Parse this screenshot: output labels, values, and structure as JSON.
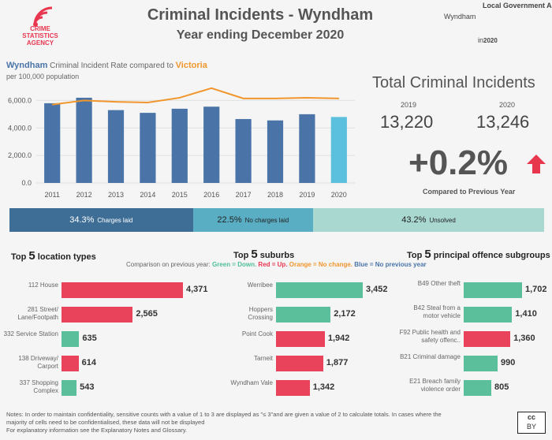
{
  "header": {
    "title": "Criminal Incidents - Wyndham",
    "subtitle": "Year ending December 2020",
    "logo_text": [
      "CRIME",
      "STATISTICS",
      "AGENCY"
    ]
  },
  "filters": {
    "lga_label": "Local Government Area",
    "lga_value": "Wyndham",
    "year_prefix": "in",
    "year_value": "2020"
  },
  "rate_chart": {
    "title_area": "Wyndham",
    "title_mid": " Criminal Incident Rate compared to ",
    "title_vic": "Victoria",
    "subtitle": "per 100,000 population"
  },
  "chart_data": {
    "type": "bar",
    "title": "Wyndham Criminal Incident Rate compared to Victoria",
    "ylabel": "per 100,000 population",
    "categories": [
      "2011",
      "2012",
      "2013",
      "2014",
      "2015",
      "2016",
      "2017",
      "2018",
      "2019",
      "2020"
    ],
    "series": [
      {
        "name": "Wyndham",
        "type": "bar",
        "values": [
          5800,
          6200,
          5300,
          5100,
          5400,
          5550,
          4650,
          4550,
          5000,
          4800
        ]
      },
      {
        "name": "Victoria",
        "type": "line",
        "values": [
          5700,
          6000,
          5900,
          5850,
          6200,
          6900,
          6150,
          6150,
          6200,
          6150
        ]
      }
    ],
    "ylim": [
      0,
      7000
    ],
    "yticks": [
      "0.0",
      "2,000.0",
      "4,000.0",
      "6,000.0"
    ],
    "ytick_values": [
      0,
      2000,
      4000,
      6000
    ]
  },
  "totals": {
    "title": "Total Criminal Incidents",
    "year_prev": "2019",
    "year_curr": "2020",
    "value_prev": "13,220",
    "value_curr": "13,246",
    "change": "+0.2%",
    "change_label": "Compared to Previous Year"
  },
  "outcomes": [
    {
      "pct": "34.3%",
      "label": "Charges laid",
      "share": 34.3,
      "color": "#3e6e96"
    },
    {
      "pct": "22.5%",
      "label": "No charges laid",
      "share": 22.5,
      "color": "#5aaec3"
    },
    {
      "pct": "43.2%",
      "label": "Unsolved",
      "share": 43.2,
      "color": "#a9d8d1"
    }
  ],
  "legend": {
    "prefix": "Comparison on previous year: ",
    "green": "Green = Down.",
    "red": "Red = Up.",
    "orange": "Orange = No change.",
    "blue": "Blue = No previous year"
  },
  "locations": {
    "title_pre": "Top ",
    "title_n": "5",
    "title_post": " location types",
    "items": [
      {
        "label": "112 House",
        "value": 4371,
        "display": "4,371",
        "color": "#e8435b"
      },
      {
        "label": "281 Street/ Lane/Footpath",
        "value": 2565,
        "display": "2,565",
        "color": "#e8435b"
      },
      {
        "label": "332 Service Station",
        "value": 635,
        "display": "635",
        "color": "#5cbf9c"
      },
      {
        "label": "138 Driveway/ Carport",
        "value": 614,
        "display": "614",
        "color": "#e8435b"
      },
      {
        "label": "337 Shopping Complex",
        "value": 543,
        "display": "543",
        "color": "#5cbf9c"
      }
    ]
  },
  "suburbs": {
    "title_pre": "Top ",
    "title_n": "5",
    "title_post": " suburbs",
    "items": [
      {
        "label": "Werribee",
        "value": 3452,
        "display": "3,452",
        "color": "#5cbf9c"
      },
      {
        "label": "Hoppers Crossing",
        "value": 2172,
        "display": "2,172",
        "color": "#5cbf9c"
      },
      {
        "label": "Point Cook",
        "value": 1942,
        "display": "1,942",
        "color": "#e8435b"
      },
      {
        "label": "Tarneit",
        "value": 1877,
        "display": "1,877",
        "color": "#e8435b"
      },
      {
        "label": "Wyndham Vale",
        "value": 1342,
        "display": "1,342",
        "color": "#e8435b"
      }
    ]
  },
  "offences": {
    "title_pre": "Top ",
    "title_n": "5",
    "title_post": " principal offence subgroups",
    "items": [
      {
        "label": "B49 Other theft",
        "value": 1702,
        "display": "1,702",
        "color": "#5cbf9c"
      },
      {
        "label": "B42 Steal from a motor vehicle",
        "value": 1410,
        "display": "1,410",
        "color": "#5cbf9c"
      },
      {
        "label": "F92 Public health and safety offenc..",
        "value": 1360,
        "display": "1,360",
        "color": "#e8435b"
      },
      {
        "label": "B21 Criminal damage",
        "value": 990,
        "display": "990",
        "color": "#5cbf9c"
      },
      {
        "label": "E21 Breach family violence order",
        "value": 805,
        "display": "805",
        "color": "#5cbf9c"
      }
    ]
  },
  "notes": {
    "line1": "Notes:  In order to maintain confidentiality, sensitive counts with a value of 1 to 3  are displayed as \"≤ 3\"and are given a value of 2 to calculate totals. In cases where the",
    "line2": "majority of cells need to be confidentialised, these data will not be displayed",
    "line3": "For explanatory information see the Explanatory Notes and Glossary."
  },
  "license": {
    "line1": "cc",
    "line2": "BY"
  }
}
